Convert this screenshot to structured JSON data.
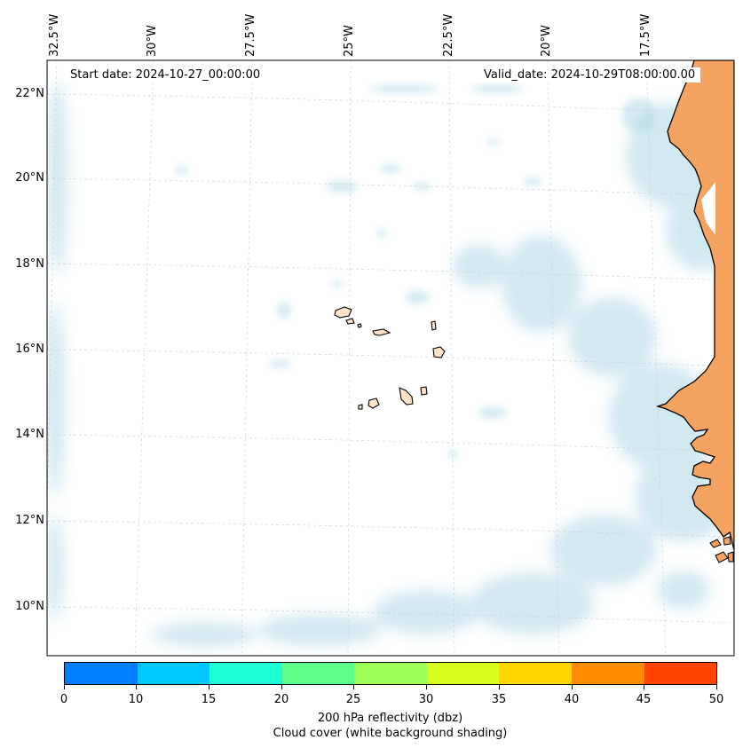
{
  "map": {
    "start_date": "Start date: 2024-10-27_00:00:00",
    "valid_date": "Valid_date: 2024-10-29T08:00:00.00",
    "lon_labels": [
      "32.5°W",
      "30°W",
      "27.5°W",
      "25°W",
      "22.5°W",
      "20°W",
      "17.5°W"
    ],
    "lat_labels": [
      "22°N",
      "20°N",
      "18°N",
      "16°N",
      "14°N",
      "12°N",
      "10°N"
    ],
    "colors": {
      "land": "#f4a460",
      "island": "#fde3c8",
      "cloud": "#add8e6",
      "grid": "#cccccc",
      "coast": "#000000"
    }
  },
  "colorbar": {
    "ticks": [
      "0",
      "10",
      "15",
      "20",
      "25",
      "30",
      "35",
      "40",
      "45",
      "50"
    ],
    "colors": [
      "#0080ff",
      "#00c8ff",
      "#1effd5",
      "#5fff8a",
      "#9bff55",
      "#d8ff1e",
      "#ffd700",
      "#ff8c00",
      "#ff4500"
    ],
    "label_line1": "200 hPa reflectivity (dbz)",
    "label_line2": "Cloud cover (white background shading)"
  }
}
